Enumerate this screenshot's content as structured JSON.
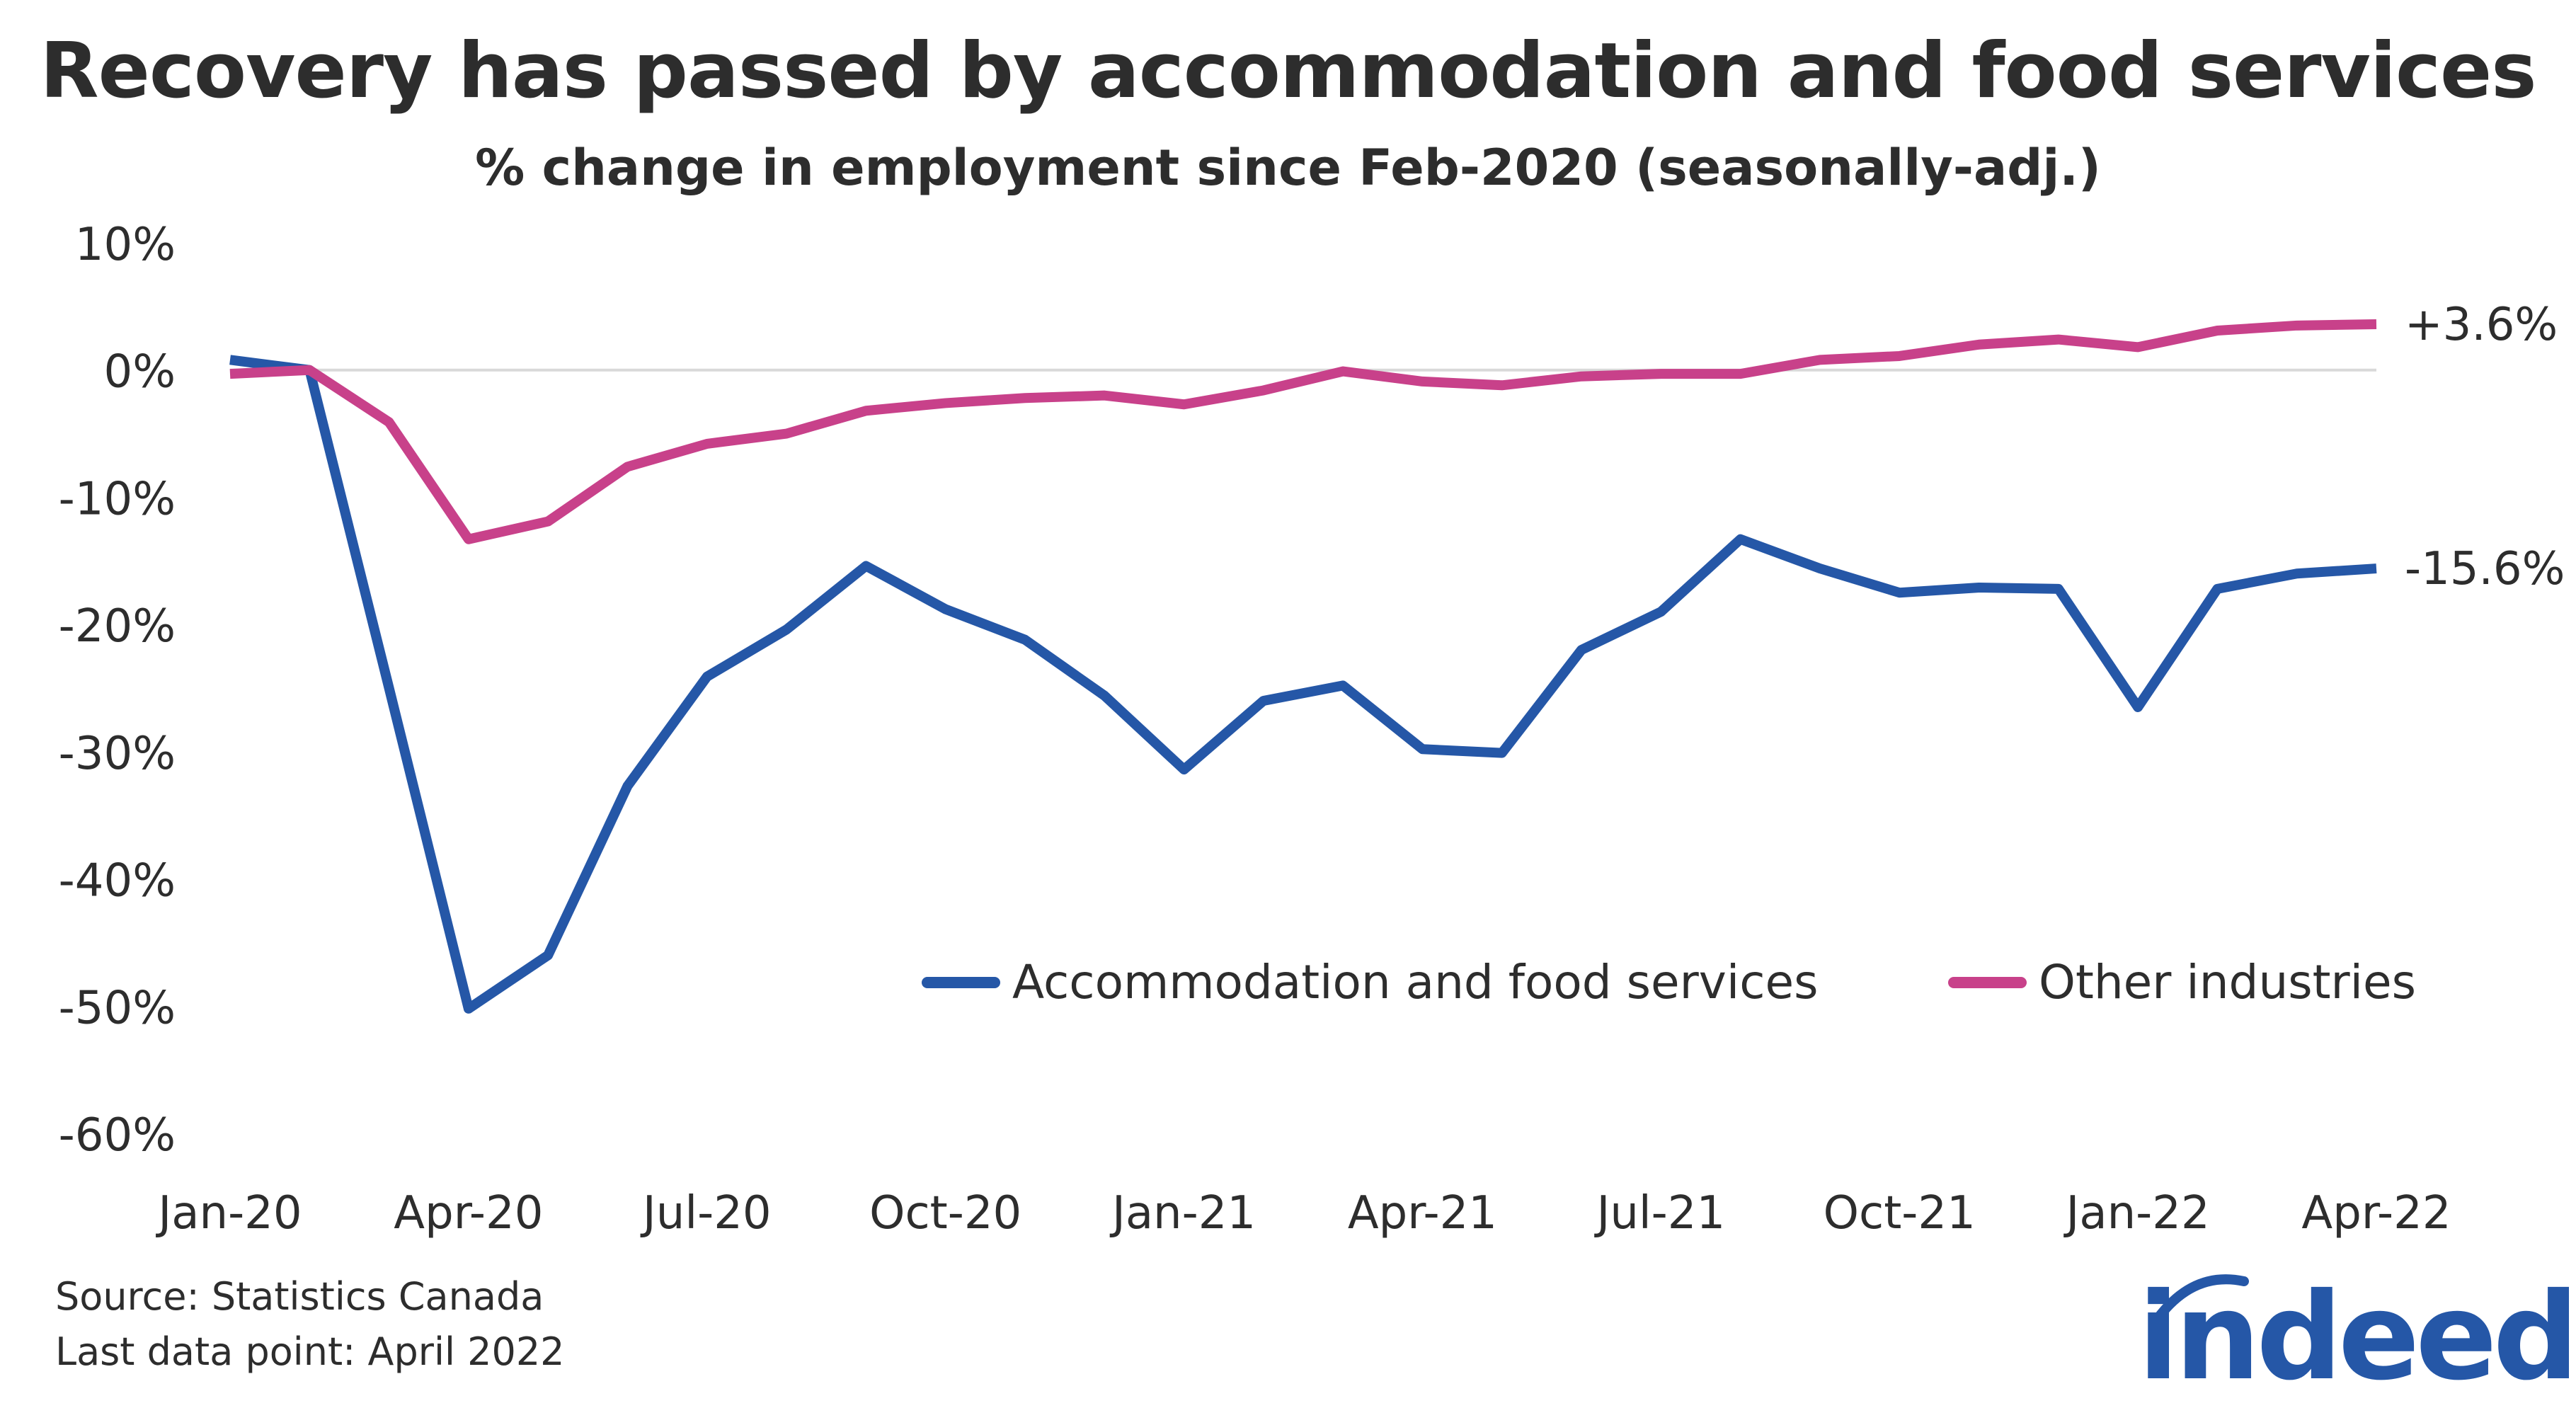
{
  "title": "Recovery has passed by accommodation and food services",
  "subtitle": "% change in employment since Feb-2020 (seasonally-adj.)",
  "source": "Source: Statistics Canada",
  "last_data_point": "Last data point: April 2022",
  "logo_text": "indeed",
  "colors": {
    "accommodation": "#2557a7",
    "other": "#c8418a",
    "text": "#2d2d2d",
    "zero_line": "#d9d9d9"
  },
  "chart_data": {
    "type": "line",
    "title": "Recovery has passed by accommodation and food services",
    "subtitle": "% change in employment since Feb-2020 (seasonally-adj.)",
    "ylim": [
      -60,
      10
    ],
    "yticks": [
      "10%",
      "0%",
      "-10%",
      "-20%",
      "-30%",
      "-40%",
      "-50%",
      "-60%"
    ],
    "ytick_values": [
      10,
      0,
      -10,
      -20,
      -30,
      -40,
      -50,
      -60
    ],
    "xticks": [
      "Jan-20",
      "Apr-20",
      "Jul-20",
      "Oct-20",
      "Jan-21",
      "Apr-21",
      "Jul-21",
      "Oct-21",
      "Jan-22",
      "Apr-22"
    ],
    "x": [
      "Jan-20",
      "Feb-20",
      "Mar-20",
      "Apr-20",
      "May-20",
      "Jun-20",
      "Jul-20",
      "Aug-20",
      "Sep-20",
      "Oct-20",
      "Nov-20",
      "Dec-20",
      "Jan-21",
      "Feb-21",
      "Mar-21",
      "Apr-21",
      "May-21",
      "Jun-21",
      "Jul-21",
      "Aug-21",
      "Sep-21",
      "Oct-21",
      "Nov-21",
      "Dec-21",
      "Jan-22",
      "Feb-22",
      "Mar-22",
      "Apr-22"
    ],
    "legend_position": "bottom-right",
    "grid": false,
    "series": [
      {
        "name": "Accommodation and food services",
        "color": "#2557a7",
        "end_label": "-15.6%",
        "values": [
          0.8,
          0,
          -25,
          -50.2,
          -46,
          -32.7,
          -24.1,
          -20.4,
          -15.4,
          -18.8,
          -21.2,
          -25.6,
          -31.4,
          -26,
          -24.8,
          -29.8,
          -30.1,
          -22,
          -19,
          -13.3,
          -15.6,
          -17.5,
          -17.1,
          -17.2,
          -26.5,
          -17.2,
          -16,
          -15.6
        ]
      },
      {
        "name": "Other industries",
        "color": "#c8418a",
        "end_label": "+3.6%",
        "values": [
          -0.3,
          0,
          -4.1,
          -13.3,
          -11.9,
          -7.6,
          -5.8,
          -5,
          -3.2,
          -2.6,
          -2.2,
          -2,
          -2.7,
          -1.6,
          -0.1,
          -0.9,
          -1.2,
          -0.5,
          -0.3,
          -0.3,
          0.8,
          1.1,
          2,
          2.4,
          1.8,
          3.1,
          3.5,
          3.6
        ]
      }
    ]
  }
}
